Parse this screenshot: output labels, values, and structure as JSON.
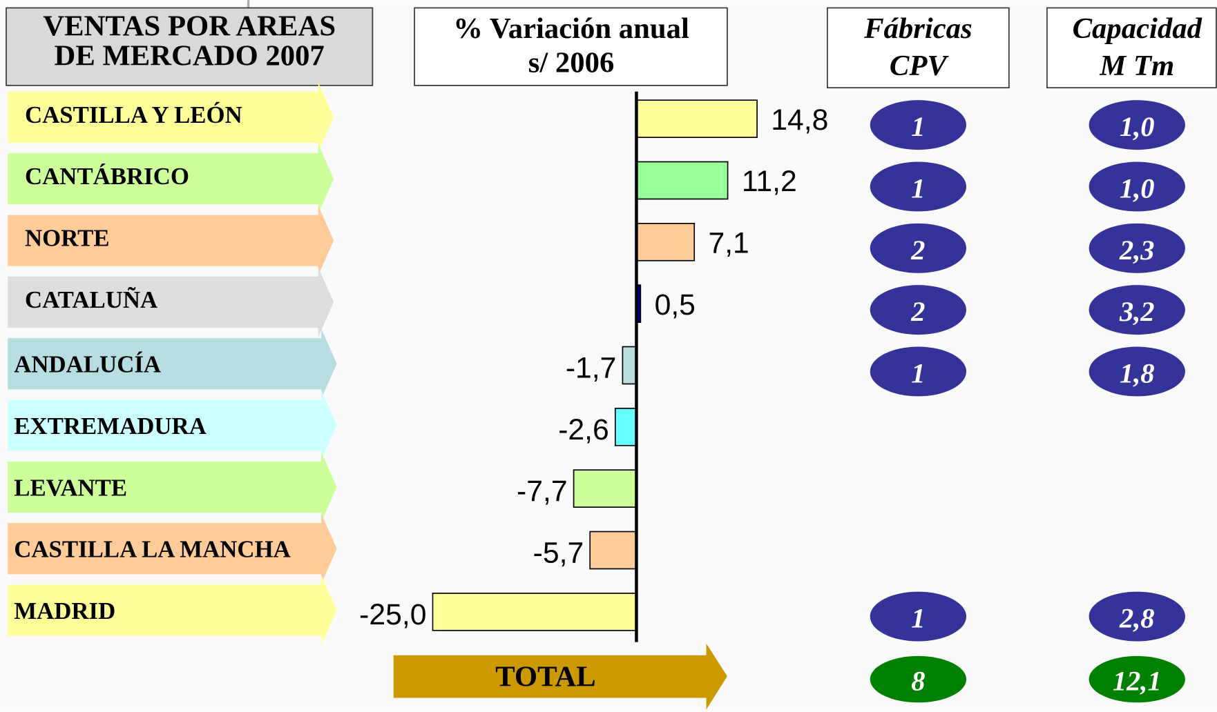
{
  "header": {
    "title": [
      "VENTAS POR AREAS",
      "DE MERCADO 2007"
    ]
  },
  "chart_data": {
    "type": "bar",
    "orientation": "horizontal",
    "title": [
      "% Variación anual",
      "s/ 2006"
    ],
    "categories": [
      "CASTILLA Y LEÓN",
      "CANTÁBRICO",
      "NORTE",
      "CATALUÑA",
      "ANDALUCÍA",
      "EXTREMADURA",
      "LEVANTE",
      "CASTILLA LA MANCHA",
      "MADRID"
    ],
    "values": [
      14.8,
      11.2,
      7.1,
      0.5,
      -1.7,
      -2.6,
      -7.7,
      -5.7,
      -25.0
    ],
    "value_labels": [
      "14,8",
      "11,2",
      "7,1",
      "0,5",
      "-1,7",
      "-2,6",
      "-7,7",
      "-5,7",
      "-25,0"
    ],
    "colors": [
      "#ffff99",
      "#99ff99",
      "#ffcc99",
      "#000080",
      "#b7dde0",
      "#66ffff",
      "#ccff99",
      "#ffcc99",
      "#ffff99"
    ],
    "category_colors": [
      "#ffff99",
      "#ccff99",
      "#ffcc99",
      "#dddddd",
      "#b7dde0",
      "#ccffff",
      "#ccff99",
      "#ffcc99",
      "#ffff99"
    ]
  },
  "table": {
    "columns": [
      {
        "title": [
          "Fábricas",
          "CPV"
        ],
        "values": [
          "1",
          "1",
          "2",
          "2",
          "1",
          null,
          null,
          null,
          "1"
        ],
        "total": "8"
      },
      {
        "title": [
          "Capacidad",
          "M Tm"
        ],
        "values": [
          "1,0",
          "1,0",
          "2,3",
          "3,2",
          "1,8",
          null,
          null,
          null,
          "2,8"
        ],
        "total": "12,1"
      }
    ],
    "total_label": "TOTAL"
  }
}
